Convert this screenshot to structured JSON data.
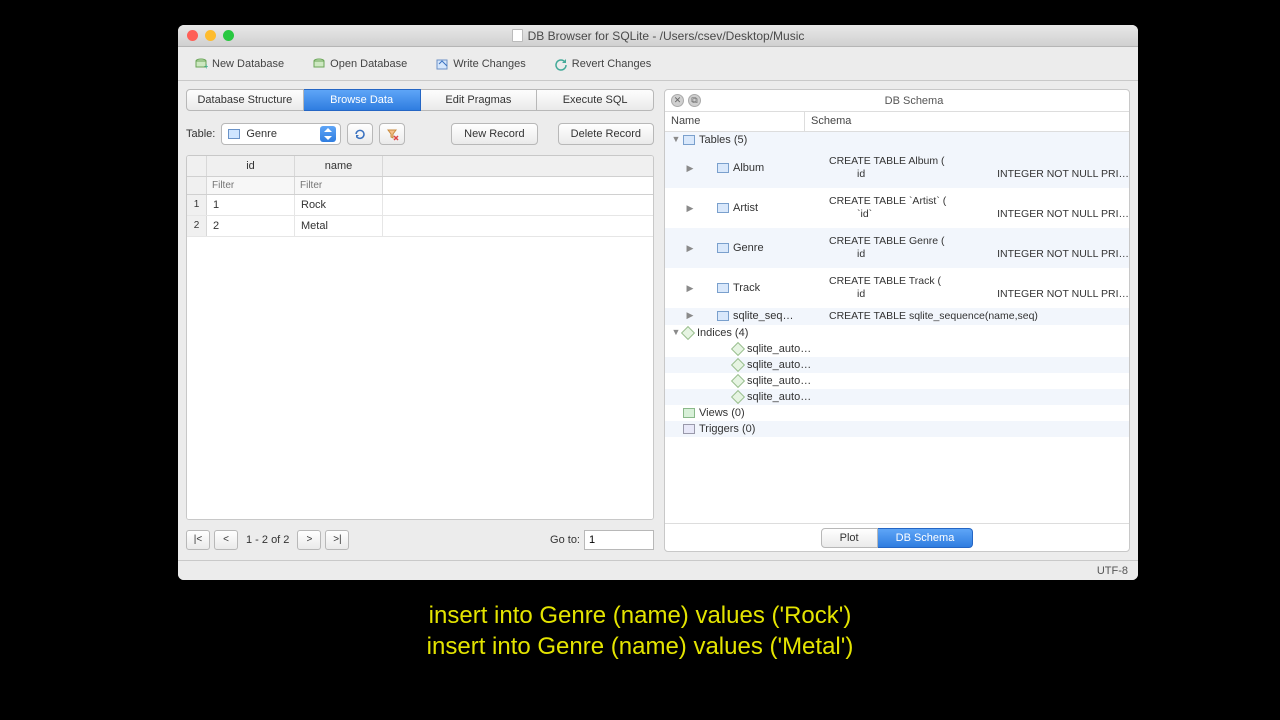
{
  "window": {
    "title": "DB Browser for SQLite - /Users/csev/Desktop/Music",
    "traffic_lights": {
      "close": "#ff5f57",
      "min": "#febc2e",
      "max": "#28c840"
    }
  },
  "toolbar": {
    "new_db": "New Database",
    "open_db": "Open Database",
    "write": "Write Changes",
    "revert": "Revert Changes"
  },
  "tabs": {
    "items": [
      "Database Structure",
      "Browse Data",
      "Edit Pragmas",
      "Execute SQL"
    ],
    "active_index": 1
  },
  "browse": {
    "table_label": "Table:",
    "selected_table": "Genre",
    "new_record": "New Record",
    "delete_record": "Delete Record",
    "columns": [
      "id",
      "name"
    ],
    "filter_placeholder": "Filter",
    "rows": [
      {
        "n": "1",
        "id": "1",
        "name": "Rock"
      },
      {
        "n": "2",
        "id": "2",
        "name": "Metal"
      }
    ],
    "pager": {
      "first": "|<",
      "prev": "<",
      "next": ">",
      "last": ">|",
      "status": "1 - 2 of 2",
      "goto_label": "Go to:",
      "goto_value": "1"
    }
  },
  "schema_panel": {
    "title": "DB Schema",
    "col_name": "Name",
    "col_schema": "Schema",
    "tables_label": "Tables (5)",
    "tables": [
      {
        "name": "Album",
        "ddl": "CREATE TABLE Album (",
        "sub_key": "id",
        "sub_val": "INTEGER NOT NULL PRI…"
      },
      {
        "name": "Artist",
        "ddl": "CREATE TABLE `Artist` (",
        "sub_key": "`id`",
        "sub_val": "INTEGER NOT NULL PRI…"
      },
      {
        "name": "Genre",
        "ddl": "CREATE TABLE Genre (",
        "sub_key": "id",
        "sub_val": "INTEGER NOT NULL PRI…"
      },
      {
        "name": "Track",
        "ddl": "CREATE TABLE Track (",
        "sub_key": "id",
        "sub_val": "INTEGER NOT NULL PRI…"
      }
    ],
    "sqlite_seq": {
      "name": "sqlite_seq…",
      "ddl": "CREATE TABLE sqlite_sequence(name,seq)"
    },
    "indices_label": "Indices (4)",
    "indices": [
      "sqlite_auto…",
      "sqlite_auto…",
      "sqlite_auto…",
      "sqlite_auto…"
    ],
    "views_label": "Views (0)",
    "triggers_label": "Triggers (0)",
    "footer": {
      "plot": "Plot",
      "schema": "DB Schema"
    }
  },
  "statusbar": {
    "encoding": "UTF-8"
  },
  "caption": {
    "line1": "insert into Genre (name) values ('Rock')",
    "line2": "insert into Genre (name) values ('Metal')"
  }
}
